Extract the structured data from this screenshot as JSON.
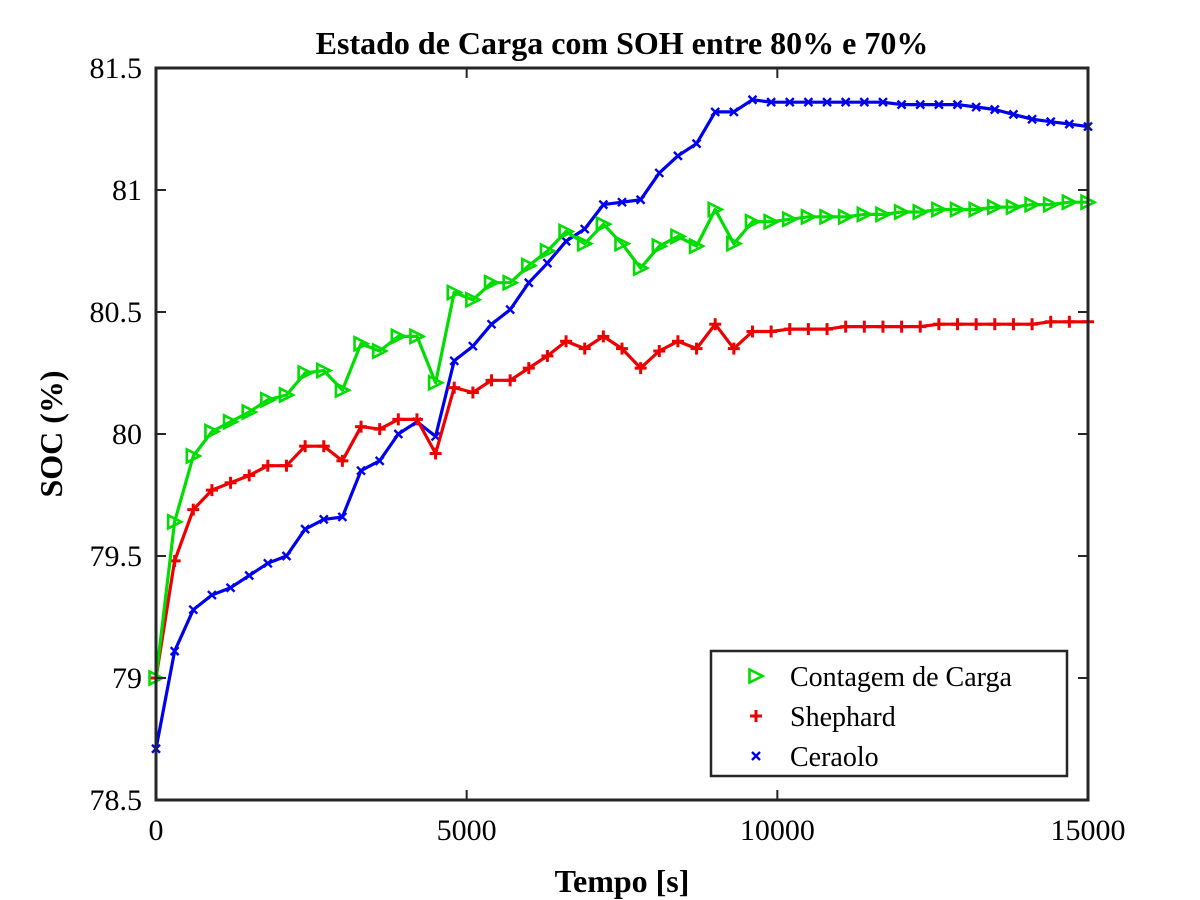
{
  "chart_data": {
    "type": "line",
    "title": "Estado de Carga com SOH entre 80% e 70%",
    "xlabel": "Tempo [s]",
    "ylabel": "SOC (%)",
    "xlim": [
      0,
      15000
    ],
    "ylim": [
      78.5,
      81.5
    ],
    "xticks": [
      0,
      5000,
      10000,
      15000
    ],
    "xtick_labels": [
      "0",
      "5000",
      "10000",
      "15000"
    ],
    "yticks": [
      78.5,
      79,
      79.5,
      80,
      80.5,
      81,
      81.5
    ],
    "ytick_labels": [
      "78.5",
      "79",
      "79.5",
      "80",
      "80.5",
      "81",
      "81.5"
    ],
    "grid": false,
    "legend_position": "bottom-right",
    "series": [
      {
        "name": "Contagem de Carga",
        "color": "#00dd00",
        "marker": "triangle-right",
        "x": [
          0,
          300,
          600,
          900,
          1200,
          1500,
          1800,
          2100,
          2400,
          2700,
          3000,
          3300,
          3600,
          3900,
          4200,
          4500,
          4800,
          5100,
          5400,
          5700,
          6000,
          6300,
          6600,
          6900,
          7200,
          7500,
          7800,
          8100,
          8400,
          8700,
          9000,
          9300,
          9600,
          9900,
          10200,
          10500,
          10800,
          11100,
          11400,
          11700,
          12000,
          12300,
          12600,
          12900,
          13200,
          13500,
          13800,
          14100,
          14400,
          14700,
          15000
        ],
        "y": [
          79.0,
          79.64,
          79.91,
          80.01,
          80.05,
          80.09,
          80.14,
          80.16,
          80.25,
          80.26,
          80.18,
          80.37,
          80.34,
          80.4,
          80.4,
          80.21,
          80.58,
          80.55,
          80.62,
          80.62,
          80.69,
          80.75,
          80.83,
          80.78,
          80.86,
          80.78,
          80.68,
          80.77,
          80.81,
          80.77,
          80.92,
          80.78,
          80.87,
          80.87,
          80.88,
          80.89,
          80.89,
          80.89,
          80.9,
          80.9,
          80.91,
          80.91,
          80.92,
          80.92,
          80.92,
          80.93,
          80.93,
          80.94,
          80.94,
          80.95,
          80.95
        ]
      },
      {
        "name": "Shephard",
        "color": "#ee0000",
        "marker": "plus",
        "x": [
          0,
          300,
          600,
          900,
          1200,
          1500,
          1800,
          2100,
          2400,
          2700,
          3000,
          3300,
          3600,
          3900,
          4200,
          4500,
          4800,
          5100,
          5400,
          5700,
          6000,
          6300,
          6600,
          6900,
          7200,
          7500,
          7800,
          8100,
          8400,
          8700,
          9000,
          9300,
          9600,
          9900,
          10200,
          10500,
          10800,
          11100,
          11400,
          11700,
          12000,
          12300,
          12600,
          12900,
          13200,
          13500,
          13800,
          14100,
          14400,
          14700,
          15000
        ],
        "y": [
          79.0,
          79.48,
          79.69,
          79.77,
          79.8,
          79.83,
          79.87,
          79.87,
          79.95,
          79.95,
          79.89,
          80.03,
          80.02,
          80.06,
          80.06,
          79.92,
          80.19,
          80.17,
          80.22,
          80.22,
          80.27,
          80.32,
          80.38,
          80.35,
          80.4,
          80.35,
          80.27,
          80.34,
          80.38,
          80.35,
          80.45,
          80.35,
          80.42,
          80.42,
          80.43,
          80.43,
          80.43,
          80.44,
          80.44,
          80.44,
          80.44,
          80.44,
          80.45,
          80.45,
          80.45,
          80.45,
          80.45,
          80.45,
          80.46,
          80.46,
          80.46
        ]
      },
      {
        "name": "Ceraolo",
        "color": "#0000ee",
        "marker": "x",
        "x": [
          0,
          300,
          600,
          900,
          1200,
          1500,
          1800,
          2100,
          2400,
          2700,
          3000,
          3300,
          3600,
          3900,
          4200,
          4500,
          4800,
          5100,
          5400,
          5700,
          6000,
          6300,
          6600,
          6900,
          7200,
          7500,
          7800,
          8100,
          8400,
          8700,
          9000,
          9300,
          9600,
          9900,
          10200,
          10500,
          10800,
          11100,
          11400,
          11700,
          12000,
          12300,
          12600,
          12900,
          13200,
          13500,
          13800,
          14100,
          14400,
          14700,
          15000
        ],
        "y": [
          78.71,
          79.11,
          79.28,
          79.34,
          79.37,
          79.42,
          79.47,
          79.5,
          79.61,
          79.65,
          79.66,
          79.85,
          79.89,
          80.0,
          80.05,
          79.99,
          80.3,
          80.36,
          80.45,
          80.51,
          80.62,
          80.7,
          80.79,
          80.84,
          80.94,
          80.95,
          80.96,
          81.07,
          81.14,
          81.19,
          81.32,
          81.32,
          81.37,
          81.36,
          81.36,
          81.36,
          81.36,
          81.36,
          81.36,
          81.36,
          81.35,
          81.35,
          81.35,
          81.35,
          81.34,
          81.33,
          81.31,
          81.29,
          81.28,
          81.27,
          81.26
        ]
      }
    ]
  }
}
